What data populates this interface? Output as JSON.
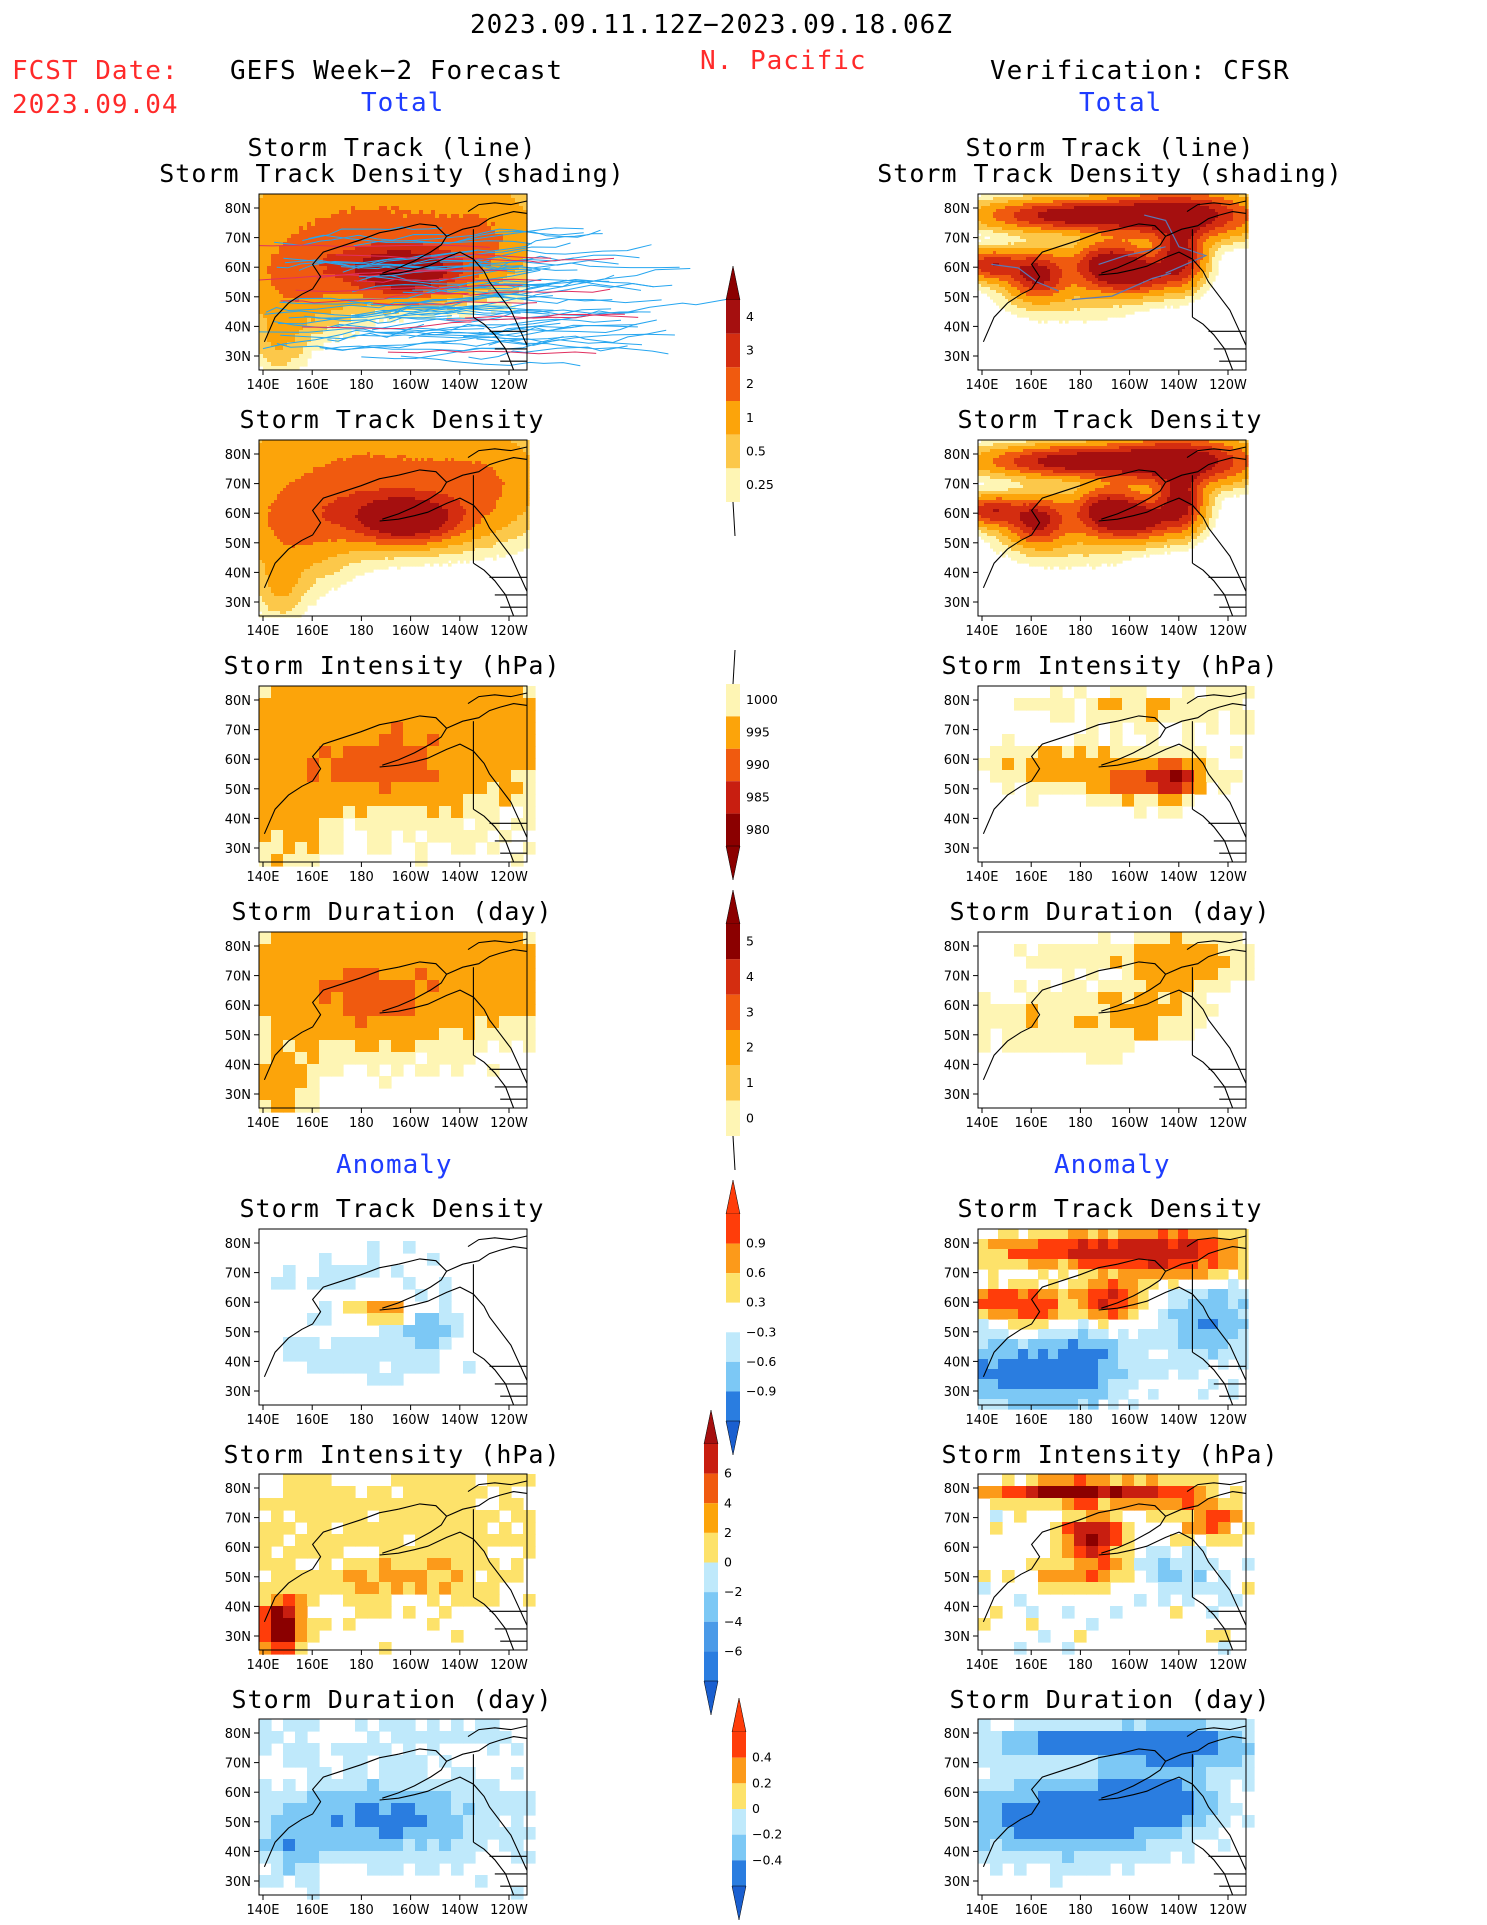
{
  "header": {
    "period": "2023.09.11.12Z−2023.09.18.06Z",
    "region": "N. Pacific",
    "fcst_label": "FCST Date:",
    "fcst_date": "2023.09.04",
    "left_title": "GEFS Week−2 Forecast",
    "right_title": "Verification: CFSR",
    "total_label": "Total",
    "anomaly_label": "Anomaly"
  },
  "axes": {
    "lat_ticks": [
      "80N",
      "70N",
      "60N",
      "50N",
      "40N",
      "30N"
    ],
    "lon_ticks": [
      "140E",
      "160E",
      "180",
      "160W",
      "140W",
      "120W"
    ]
  },
  "panels": {
    "track": [
      "Storm Track (line)",
      "Storm Track Density (shading)"
    ],
    "density": "Storm Track Density",
    "intensity": "Storm Intensity (hPa)",
    "duration": "Storm Duration (day)"
  },
  "colorbars": [
    {
      "id": "density",
      "labels": [
        "4",
        "3",
        "2",
        "1",
        "0.5",
        "0.25"
      ],
      "colors": [
        "#a50f0f",
        "#d42d10",
        "#f05a0f",
        "#fca40a",
        "#fcc84a",
        "#fef5b4"
      ],
      "arrow_top": "#8b0000",
      "arrow_bottom": "none"
    },
    {
      "id": "intensity",
      "labels": [
        "1000",
        "995",
        "990",
        "985",
        "980"
      ],
      "colors": [
        "#fef5b4",
        "#fca40a",
        "#f05a0f",
        "#c81e10",
        "#8b0000"
      ],
      "arrow_top": "none",
      "arrow_bottom": "#8b0000"
    },
    {
      "id": "duration",
      "labels": [
        "5",
        "4",
        "3",
        "2",
        "1",
        "0"
      ],
      "colors": [
        "#8b0000",
        "#d42d10",
        "#f05a0f",
        "#fca40a",
        "#fcc84a",
        "#fef5b4"
      ],
      "arrow_top": "#8b0000",
      "arrow_bottom": "none"
    },
    {
      "id": "anom_density",
      "labels": [
        "0.9",
        "0.6",
        "0.3",
        "−0.3",
        "−0.6",
        "−0.9"
      ],
      "colors": [
        "#ff3d0a",
        "#fc9a1a",
        "#fde26a",
        "#ffffff",
        "#bfe9fb",
        "#7cc8f5",
        "#2a7de0"
      ],
      "arrow_top": "#ff3d0a",
      "arrow_bottom": "#1a5fd0"
    },
    {
      "id": "anom_intensity",
      "labels": [
        "6",
        "4",
        "2",
        "0",
        "−2",
        "−4",
        "−6"
      ],
      "colors": [
        "#c81e10",
        "#f05a0f",
        "#fca40a",
        "#fde26a",
        "#bfe9fb",
        "#7cc8f5",
        "#4a9ae8",
        "#2a7de0"
      ],
      "arrow_top": "#a50f0f",
      "arrow_bottom": "#1a5fd0"
    },
    {
      "id": "anom_duration",
      "labels": [
        "0.4",
        "0.2",
        "0",
        "−0.2",
        "−0.4"
      ],
      "colors": [
        "#ff3d0a",
        "#fc9a1a",
        "#fde26a",
        "#bfe9fb",
        "#7cc8f5",
        "#2a7de0"
      ],
      "arrow_top": "#ff3d0a",
      "arrow_bottom": "#1a5fd0"
    }
  ],
  "chart_data": [
    {
      "type": "heatmap",
      "title": "Storm Track (line) / Storm Track Density (shading)",
      "source": "GEFS Week-2 Forecast",
      "units": "",
      "ylabel": "",
      "xlabel": ""
    },
    {
      "type": "heatmap",
      "title": "Storm Track Density",
      "source": "GEFS Week-2 Forecast"
    },
    {
      "type": "heatmap",
      "title": "Storm Intensity (hPa)",
      "source": "GEFS Week-2 Forecast",
      "scale": [
        980,
        1000
      ]
    },
    {
      "type": "heatmap",
      "title": "Storm Duration (day)",
      "source": "GEFS Week-2 Forecast",
      "scale": [
        0,
        5
      ]
    },
    {
      "type": "heatmap",
      "title": "Storm Track Density",
      "source": "GEFS Week-2 Forecast",
      "anomaly": true,
      "scale": [
        -0.9,
        0.9
      ]
    },
    {
      "type": "heatmap",
      "title": "Storm Intensity (hPa)",
      "source": "GEFS Week-2 Forecast",
      "anomaly": true,
      "scale": [
        -6,
        6
      ]
    },
    {
      "type": "heatmap",
      "title": "Storm Duration (day)",
      "source": "GEFS Week-2 Forecast",
      "anomaly": true,
      "scale": [
        -0.4,
        0.4
      ]
    },
    {
      "type": "heatmap",
      "title": "Storm Track (line) / Storm Track Density (shading)",
      "source": "Verification: CFSR"
    },
    {
      "type": "heatmap",
      "title": "Storm Track Density",
      "source": "Verification: CFSR"
    },
    {
      "type": "heatmap",
      "title": "Storm Intensity (hPa)",
      "source": "Verification: CFSR"
    },
    {
      "type": "heatmap",
      "title": "Storm Duration (day)",
      "source": "Verification: CFSR"
    },
    {
      "type": "heatmap",
      "title": "Storm Track Density",
      "source": "Verification: CFSR",
      "anomaly": true
    },
    {
      "type": "heatmap",
      "title": "Storm Intensity (hPa)",
      "source": "Verification: CFSR",
      "anomaly": true
    },
    {
      "type": "heatmap",
      "title": "Storm Duration (day)",
      "source": "Verification: CFSR",
      "anomaly": true
    }
  ]
}
